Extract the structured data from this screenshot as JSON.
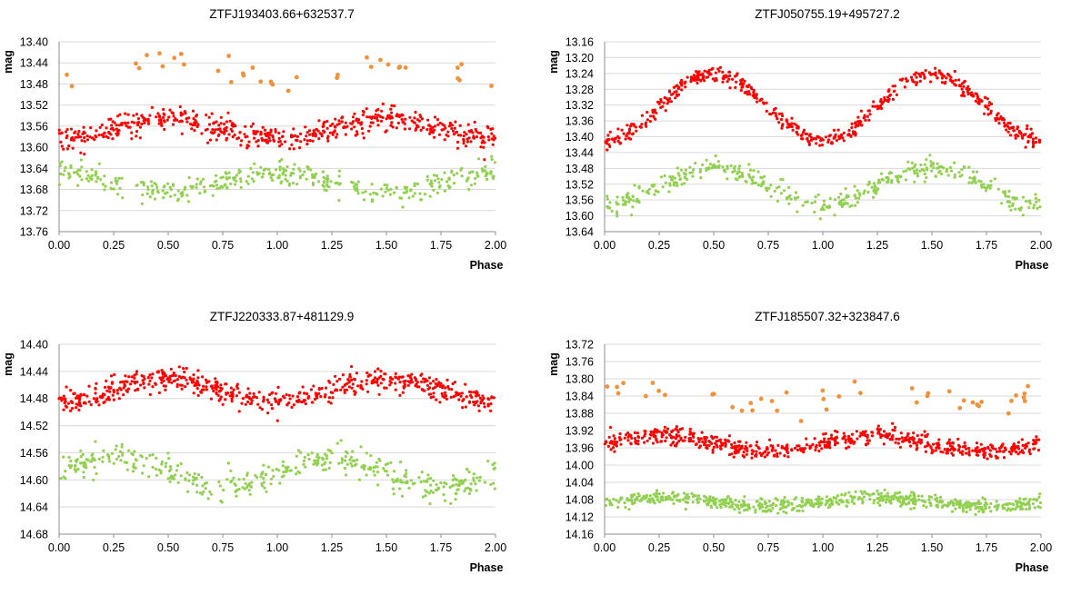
{
  "colors": {
    "orange": "#f0923a",
    "red": "#ff0000",
    "green": "#92d050"
  },
  "chart_data": [
    {
      "type": "scatter",
      "title": "ZTFJ193403.66+632537.7",
      "xlabel": "Phase",
      "ylabel": "mag",
      "xlim": [
        0,
        2
      ],
      "ylim": [
        13.4,
        13.76
      ],
      "y_inverted": true,
      "x_ticks": [
        "0.00",
        "0.25",
        "0.50",
        "0.75",
        "1.00",
        "1.25",
        "1.50",
        "1.75",
        "2.00"
      ],
      "y_ticks": [
        "13.40",
        "13.44",
        "13.48",
        "13.52",
        "13.56",
        "13.60",
        "13.64",
        "13.68",
        "13.72",
        "13.76"
      ],
      "series": [
        {
          "name": "orange",
          "color": "#f0923a",
          "n": 36,
          "base": 13.455,
          "amp": 0.018,
          "phase_shift": 0.0,
          "scatter": 0.012,
          "gaps": [
            [
              0.15,
              0.25
            ],
            [
              0.6,
              0.72
            ]
          ],
          "seed": 3,
          "size": 2.4
        },
        {
          "name": "red",
          "color": "#ff0000",
          "n": 560,
          "base": 13.565,
          "amp": 0.018,
          "phase_shift": 0.0,
          "scatter": 0.011,
          "gaps": [],
          "seed": 7,
          "size": 1.6
        },
        {
          "name": "green",
          "color": "#92d050",
          "n": 380,
          "base": 13.667,
          "amp": 0.02,
          "phase_shift": 0.5,
          "scatter": 0.012,
          "gaps": [
            [
              0.3,
              0.34
            ]
          ],
          "seed": 11,
          "size": 1.6
        }
      ]
    },
    {
      "type": "scatter",
      "title": "ZTFJ050755.19+495727.2",
      "xlabel": "Phase",
      "ylabel": "mag",
      "xlim": [
        0,
        2
      ],
      "ylim": [
        13.16,
        13.64
      ],
      "y_inverted": true,
      "x_ticks": [
        "0.00",
        "0.25",
        "0.50",
        "0.75",
        "1.00",
        "1.25",
        "1.50",
        "1.75",
        "2.00"
      ],
      "y_ticks": [
        "13.16",
        "13.20",
        "13.24",
        "13.28",
        "13.32",
        "13.36",
        "13.40",
        "13.44",
        "13.48",
        "13.52",
        "13.56",
        "13.60",
        "13.64"
      ],
      "series": [
        {
          "name": "red",
          "color": "#ff0000",
          "n": 560,
          "base": 13.325,
          "amp": 0.083,
          "phase_shift": 0.0,
          "scatter": 0.01,
          "gaps": [],
          "seed": 13,
          "size": 1.6
        },
        {
          "name": "green",
          "color": "#92d050",
          "n": 420,
          "base": 13.525,
          "amp": 0.048,
          "phase_shift": 0.0,
          "scatter": 0.013,
          "gaps": [],
          "seed": 17,
          "size": 1.6
        }
      ]
    },
    {
      "type": "scatter",
      "title": "ZTFJ220333.87+481129.9",
      "xlabel": "Phase",
      "ylabel": "mag",
      "xlim": [
        0,
        2
      ],
      "ylim": [
        14.4,
        14.68
      ],
      "y_inverted": true,
      "x_ticks": [
        "0.00",
        "0.25",
        "0.50",
        "0.75",
        "1.00",
        "1.25",
        "1.50",
        "1.75",
        "2.00"
      ],
      "y_ticks": [
        "14.40",
        "14.44",
        "14.48",
        "14.52",
        "14.56",
        "14.60",
        "14.64",
        "14.68"
      ],
      "series": [
        {
          "name": "red",
          "color": "#ff0000",
          "n": 600,
          "base": 14.468,
          "amp": 0.016,
          "phase_shift": 0.0,
          "scatter": 0.009,
          "gaps": [],
          "seed": 19,
          "size": 1.6
        },
        {
          "name": "green",
          "color": "#92d050",
          "n": 420,
          "base": 14.59,
          "amp": 0.022,
          "phase_shift": 0.25,
          "scatter": 0.01,
          "gaps": [],
          "seed": 23,
          "size": 1.6
        }
      ]
    },
    {
      "type": "scatter",
      "title": "ZTFJ185507.32+323847.6",
      "xlabel": "Phase",
      "ylabel": "mag",
      "xlim": [
        0,
        2
      ],
      "ylim": [
        13.72,
        14.16
      ],
      "y_inverted": true,
      "x_ticks": [
        "0.00",
        "0.25",
        "0.50",
        "0.75",
        "1.00",
        "1.25",
        "1.50",
        "1.75",
        "2.00"
      ],
      "y_ticks": [
        "13.72",
        "13.76",
        "13.80",
        "13.84",
        "13.88",
        "13.92",
        "13.96",
        "14.00",
        "14.04",
        "14.08",
        "14.12",
        "14.16"
      ],
      "series": [
        {
          "name": "orange",
          "color": "#f0923a",
          "n": 44,
          "base": 13.84,
          "amp": 0.018,
          "phase_shift": 0.25,
          "scatter": 0.016,
          "gaps": [],
          "seed": 29,
          "size": 2.4
        },
        {
          "name": "red",
          "color": "#ff0000",
          "n": 620,
          "base": 13.95,
          "amp": 0.018,
          "phase_shift": 0.25,
          "scatter": 0.01,
          "gaps": [],
          "seed": 31,
          "size": 1.6
        },
        {
          "name": "green",
          "color": "#92d050",
          "n": 620,
          "base": 14.085,
          "amp": 0.01,
          "phase_shift": 0.25,
          "scatter": 0.008,
          "gaps": [],
          "seed": 37,
          "size": 1.6
        }
      ]
    }
  ]
}
